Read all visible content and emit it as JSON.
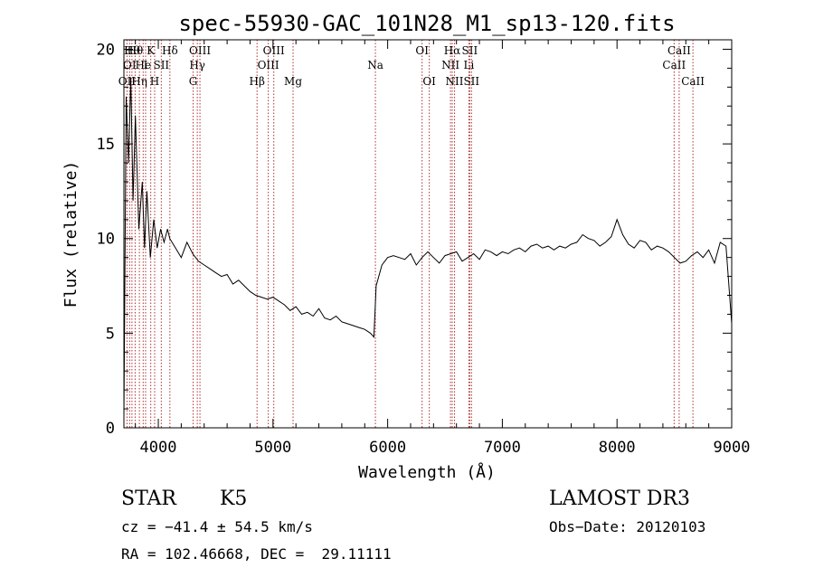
{
  "chart_data": {
    "type": "line",
    "title": "spec-55930-GAC_101N28_M1_sp13-120.fits",
    "xlabel": "Wavelength (Å)",
    "ylabel": "Flux (relative)",
    "xlim": [
      3700,
      9000
    ],
    "ylim": [
      0,
      20.5
    ],
    "x_ticks": [
      4000,
      5000,
      6000,
      7000,
      8000,
      9000
    ],
    "y_ticks": [
      0,
      5,
      10,
      15,
      20
    ],
    "grid": false,
    "line_color": "#000000",
    "marker_color": "#b03030",
    "series": [
      {
        "x": [
          3700,
          3720,
          3740,
          3760,
          3780,
          3800,
          3830,
          3860,
          3880,
          3900,
          3930,
          3960,
          3990,
          4020,
          4050,
          4080,
          4100,
          4150,
          4200,
          4250,
          4300,
          4350,
          4400,
          4450,
          4500,
          4550,
          4600,
          4650,
          4700,
          4750,
          4800,
          4850,
          4900,
          4950,
          5000,
          5050,
          5100,
          5150,
          5200,
          5250,
          5300,
          5350,
          5400,
          5450,
          5500,
          5550,
          5600,
          5650,
          5700,
          5750,
          5800,
          5850,
          5880,
          5900,
          5950,
          6000,
          6050,
          6100,
          6150,
          6200,
          6250,
          6300,
          6350,
          6400,
          6450,
          6500,
          6550,
          6600,
          6650,
          6700,
          6750,
          6800,
          6850,
          6900,
          6950,
          7000,
          7050,
          7100,
          7150,
          7200,
          7250,
          7300,
          7350,
          7400,
          7450,
          7500,
          7550,
          7600,
          7650,
          7700,
          7750,
          7800,
          7850,
          7900,
          7950,
          8000,
          8050,
          8100,
          8150,
          8200,
          8250,
          8300,
          8350,
          8400,
          8450,
          8500,
          8550,
          8600,
          8650,
          8700,
          8750,
          8800,
          8850,
          8900,
          8950,
          9000
        ],
        "y": [
          0.5,
          17.5,
          14.0,
          18.5,
          12.0,
          16.5,
          10.5,
          13.0,
          9.5,
          12.5,
          9.0,
          11.0,
          9.5,
          10.5,
          9.8,
          10.5,
          10.0,
          9.5,
          9.0,
          9.8,
          9.2,
          8.8,
          8.6,
          8.4,
          8.2,
          8.0,
          8.1,
          7.6,
          7.8,
          7.5,
          7.2,
          7.0,
          6.9,
          6.8,
          6.9,
          6.7,
          6.5,
          6.2,
          6.4,
          6.0,
          6.1,
          5.9,
          6.3,
          5.8,
          5.7,
          5.9,
          5.6,
          5.5,
          5.4,
          5.3,
          5.2,
          5.0,
          4.8,
          7.5,
          8.6,
          9.0,
          9.1,
          9.0,
          8.9,
          9.2,
          8.6,
          9.0,
          9.3,
          9.0,
          8.7,
          9.1,
          9.2,
          9.3,
          8.8,
          9.0,
          9.2,
          8.9,
          9.4,
          9.3,
          9.1,
          9.3,
          9.2,
          9.4,
          9.5,
          9.3,
          9.6,
          9.7,
          9.5,
          9.6,
          9.4,
          9.6,
          9.5,
          9.7,
          9.8,
          10.2,
          10.0,
          9.9,
          9.6,
          9.8,
          10.1,
          11.0,
          10.2,
          9.7,
          9.5,
          9.9,
          9.8,
          9.4,
          9.6,
          9.5,
          9.3,
          9.0,
          8.7,
          8.8,
          9.1,
          9.3,
          9.0,
          9.4,
          8.7,
          9.8,
          9.6,
          5.5
        ]
      }
    ],
    "line_markers": [
      {
        "w": 3727,
        "label": "OII",
        "row": 2
      },
      {
        "w": 3750,
        "label": "OI",
        "row": 1
      },
      {
        "w": 3770,
        "label": "Hθ",
        "row": 0
      },
      {
        "w": 3798,
        "label": "Hθ",
        "row": 0
      },
      {
        "w": 3835,
        "label": "Hη",
        "row": 2
      },
      {
        "w": 3868,
        "label": "He",
        "row": 1
      },
      {
        "w": 3889,
        "label": "I",
        "row": 1
      },
      {
        "w": 3934,
        "label": "K",
        "row": 0
      },
      {
        "w": 3968,
        "label": "H",
        "row": 2
      },
      {
        "w": 4026,
        "label": "SII",
        "row": 1
      },
      {
        "w": 4101,
        "label": "Hδ",
        "row": 0
      },
      {
        "w": 4304,
        "label": "G",
        "row": 2
      },
      {
        "w": 4340,
        "label": "Hγ",
        "row": 1
      },
      {
        "w": 4363,
        "label": "OIII",
        "row": 0
      },
      {
        "w": 4861,
        "label": "Hβ",
        "row": 2
      },
      {
        "w": 4959,
        "label": "OIII",
        "row": 1
      },
      {
        "w": 5007,
        "label": "OIII",
        "row": 0
      },
      {
        "w": 5175,
        "label": "Mg",
        "row": 2
      },
      {
        "w": 5893,
        "label": "Na",
        "row": 1
      },
      {
        "w": 6300,
        "label": "OI",
        "row": 0
      },
      {
        "w": 6363,
        "label": "OI",
        "row": 2
      },
      {
        "w": 6548,
        "label": "NII",
        "row": 1
      },
      {
        "w": 6563,
        "label": "Hα",
        "row": 0
      },
      {
        "w": 6583,
        "label": "NII",
        "row": 2
      },
      {
        "w": 6708,
        "label": "Li",
        "row": 1
      },
      {
        "w": 6716,
        "label": "SII",
        "row": 0
      },
      {
        "w": 6731,
        "label": "SII",
        "row": 2
      },
      {
        "w": 8498,
        "label": "CaII",
        "row": 1
      },
      {
        "w": 8542,
        "label": "CaII",
        "row": 0
      },
      {
        "w": 8662,
        "label": "CaII",
        "row": 2
      }
    ]
  },
  "info": {
    "class": "STAR",
    "subclass": "K5",
    "survey": "LAMOST DR3",
    "cz": "cz = −41.4 ± 54.5 km/s",
    "obs_date": "Obs−Date: 20120103",
    "coords": "RA = 102.46668, DEC =  29.11111"
  }
}
